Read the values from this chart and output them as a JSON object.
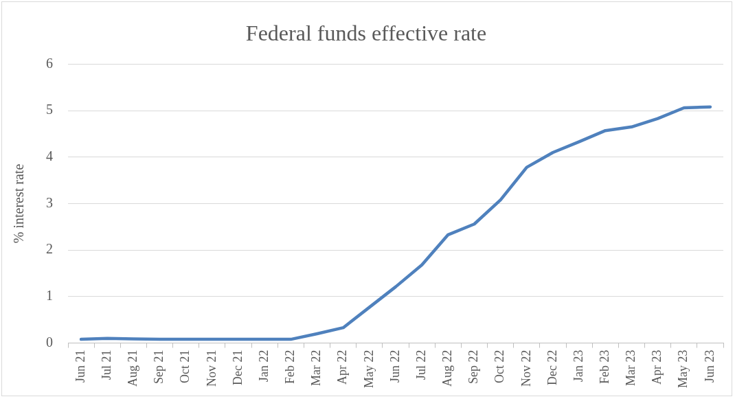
{
  "chart_data": {
    "type": "line",
    "title": "Federal funds effective rate",
    "ylabel": "% interest rate",
    "categories": [
      "Jun 21",
      "Jul 21",
      "Aug 21",
      "Sep 21",
      "Oct 21",
      "Nov 21",
      "Dec 21",
      "Jan 22",
      "Feb 22",
      "Mar 22",
      "Apr 22",
      "May 22",
      "Jun 22",
      "Jul 22",
      "Aug 22",
      "Sep 22",
      "Oct 22",
      "Nov 22",
      "Dec 22",
      "Jan 23",
      "Feb 23",
      "Mar 23",
      "Apr 23",
      "May 23",
      "Jun 23"
    ],
    "series": [
      {
        "color": "#4f81bd",
        "values": [
          0.08,
          0.1,
          0.09,
          0.08,
          0.08,
          0.08,
          0.08,
          0.08,
          0.08,
          0.2,
          0.33,
          0.77,
          1.21,
          1.68,
          2.33,
          2.56,
          3.08,
          3.78,
          4.1,
          4.33,
          4.57,
          4.65,
          4.83,
          5.06,
          5.08
        ]
      }
    ],
    "ylim": [
      0,
      6
    ],
    "yticks": [
      0,
      1,
      2,
      3,
      4,
      5,
      6
    ],
    "grid": "y",
    "legend": false,
    "marker": "none",
    "line_style": "solid"
  }
}
